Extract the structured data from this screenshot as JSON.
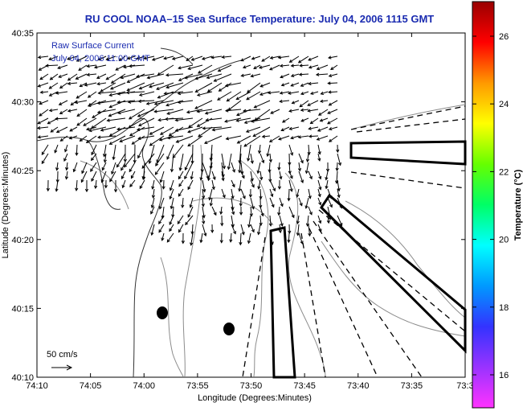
{
  "title": "RU COOL  NOAA–15  Sea Surface Temperature:  July 04, 2006 1115 GMT",
  "inset": {
    "line1": "Raw Surface Current",
    "line2": "July 04, 2006 11:00 GMT"
  },
  "scale": {
    "label": "50 cm/s"
  },
  "axes": {
    "xlabel": "Longitude (Degrees:Minutes)",
    "ylabel": "Latitude (Degrees:Minutes)",
    "x_ticks": [
      "74:10",
      "74:05",
      "74:00",
      "73:55",
      "73:50",
      "73:45",
      "73:40",
      "73:35",
      "73:3"
    ],
    "y_ticks": [
      "40:35",
      "40:30",
      "40:25",
      "40:20",
      "40:15",
      "40:10"
    ]
  },
  "colorbar": {
    "label": "Temperature (°C)",
    "ticks": [
      "26",
      "24",
      "22",
      "20",
      "18",
      "16"
    ],
    "stops": [
      "#ff33ff",
      "#9933ff",
      "#3333ff",
      "#0099ff",
      "#00ffff",
      "#00ff66",
      "#66ff00",
      "#ffff00",
      "#ff9900",
      "#ff0000",
      "#990000"
    ]
  },
  "colors": {
    "title": "#1a2bb0",
    "coast": "#333333",
    "contour": "#888888",
    "arrows": "#000000"
  }
}
